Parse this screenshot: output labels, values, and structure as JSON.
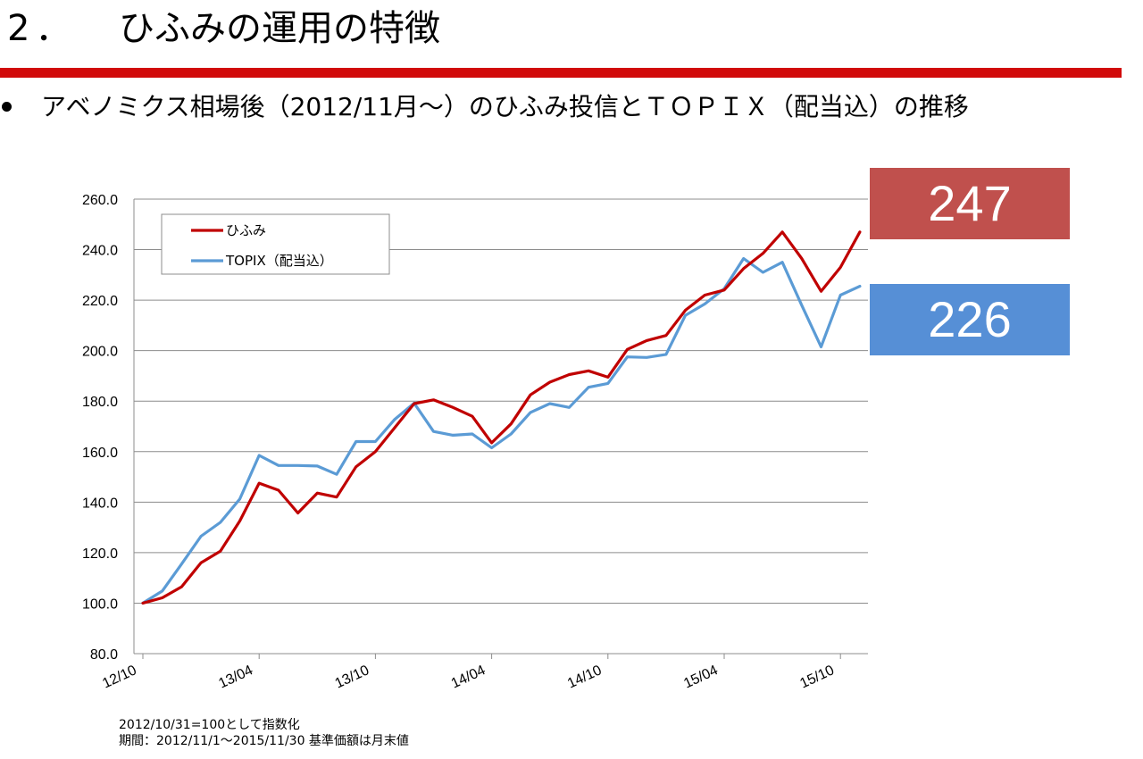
{
  "header": {
    "number": "2．",
    "title": "ひふみの運用の特徴"
  },
  "bullet": {
    "text": "アベノミクス相場後（2012/11月～）のひふみ投信とＴＯＰＩＸ（配当込）の推移"
  },
  "callouts": {
    "hifumi_value": "247",
    "topix_value": "226"
  },
  "notes": {
    "line1": "2012/10/31=100として指数化",
    "line2": "期間：2012/11/1～2015/11/30 基準価額は月末値"
  },
  "colors": {
    "title_rule": "#d10a0a",
    "hifumi": "#c00000",
    "topix": "#5b9bd5",
    "callout_hifumi": "#c0504d",
    "callout_topix": "#568fd6"
  },
  "chart_data": {
    "type": "line",
    "ylim": [
      80,
      260
    ],
    "y_ticks": [
      "80.0",
      "100.0",
      "120.0",
      "140.0",
      "160.0",
      "180.0",
      "200.0",
      "220.0",
      "240.0",
      "260.0"
    ],
    "x_tick_labels": [
      "12/10",
      "13/04",
      "13/10",
      "14/04",
      "14/10",
      "15/04",
      "15/10"
    ],
    "x": [
      "2012/10",
      "2012/11",
      "2012/12",
      "2013/01",
      "2013/02",
      "2013/03",
      "2013/04",
      "2013/05",
      "2013/06",
      "2013/07",
      "2013/08",
      "2013/09",
      "2013/10",
      "2013/11",
      "2013/12",
      "2014/01",
      "2014/02",
      "2014/03",
      "2014/04",
      "2014/05",
      "2014/06",
      "2014/07",
      "2014/08",
      "2014/09",
      "2014/10",
      "2014/11",
      "2014/12",
      "2015/01",
      "2015/02",
      "2015/03",
      "2015/04",
      "2015/05",
      "2015/06",
      "2015/07",
      "2015/08",
      "2015/09",
      "2015/10",
      "2015/11"
    ],
    "series": [
      {
        "name": "ひふみ",
        "values": [
          100.0,
          102.1,
          106.5,
          116.0,
          120.6,
          132.5,
          147.5,
          144.7,
          135.7,
          143.6,
          142.0,
          154.0,
          160.0,
          169.5,
          179.0,
          180.5,
          177.5,
          174.0,
          163.5,
          171.0,
          182.5,
          187.5,
          190.5,
          192.0,
          189.5,
          200.5,
          204.0,
          206.0,
          216.0,
          222.0,
          224.0,
          232.5,
          238.5,
          247.0,
          236.5,
          223.5,
          233.0,
          247.0
        ]
      },
      {
        "name": "TOPIX（配当込）",
        "values": [
          100.0,
          104.8,
          115.5,
          126.5,
          132.0,
          141.2,
          158.5,
          154.5,
          154.5,
          154.3,
          151.0,
          164.0,
          164.0,
          172.8,
          179.2,
          168.0,
          166.5,
          167.0,
          161.5,
          167.0,
          175.5,
          179.0,
          177.5,
          185.5,
          187.0,
          197.5,
          197.3,
          198.5,
          214.0,
          218.5,
          224.5,
          236.5,
          231.0,
          235.0,
          218.0,
          201.5,
          222.0,
          225.5
        ]
      }
    ],
    "legend": {
      "position": "top-left",
      "entries": [
        "ひふみ",
        "TOPIX（配当込）"
      ]
    },
    "grid": true
  }
}
